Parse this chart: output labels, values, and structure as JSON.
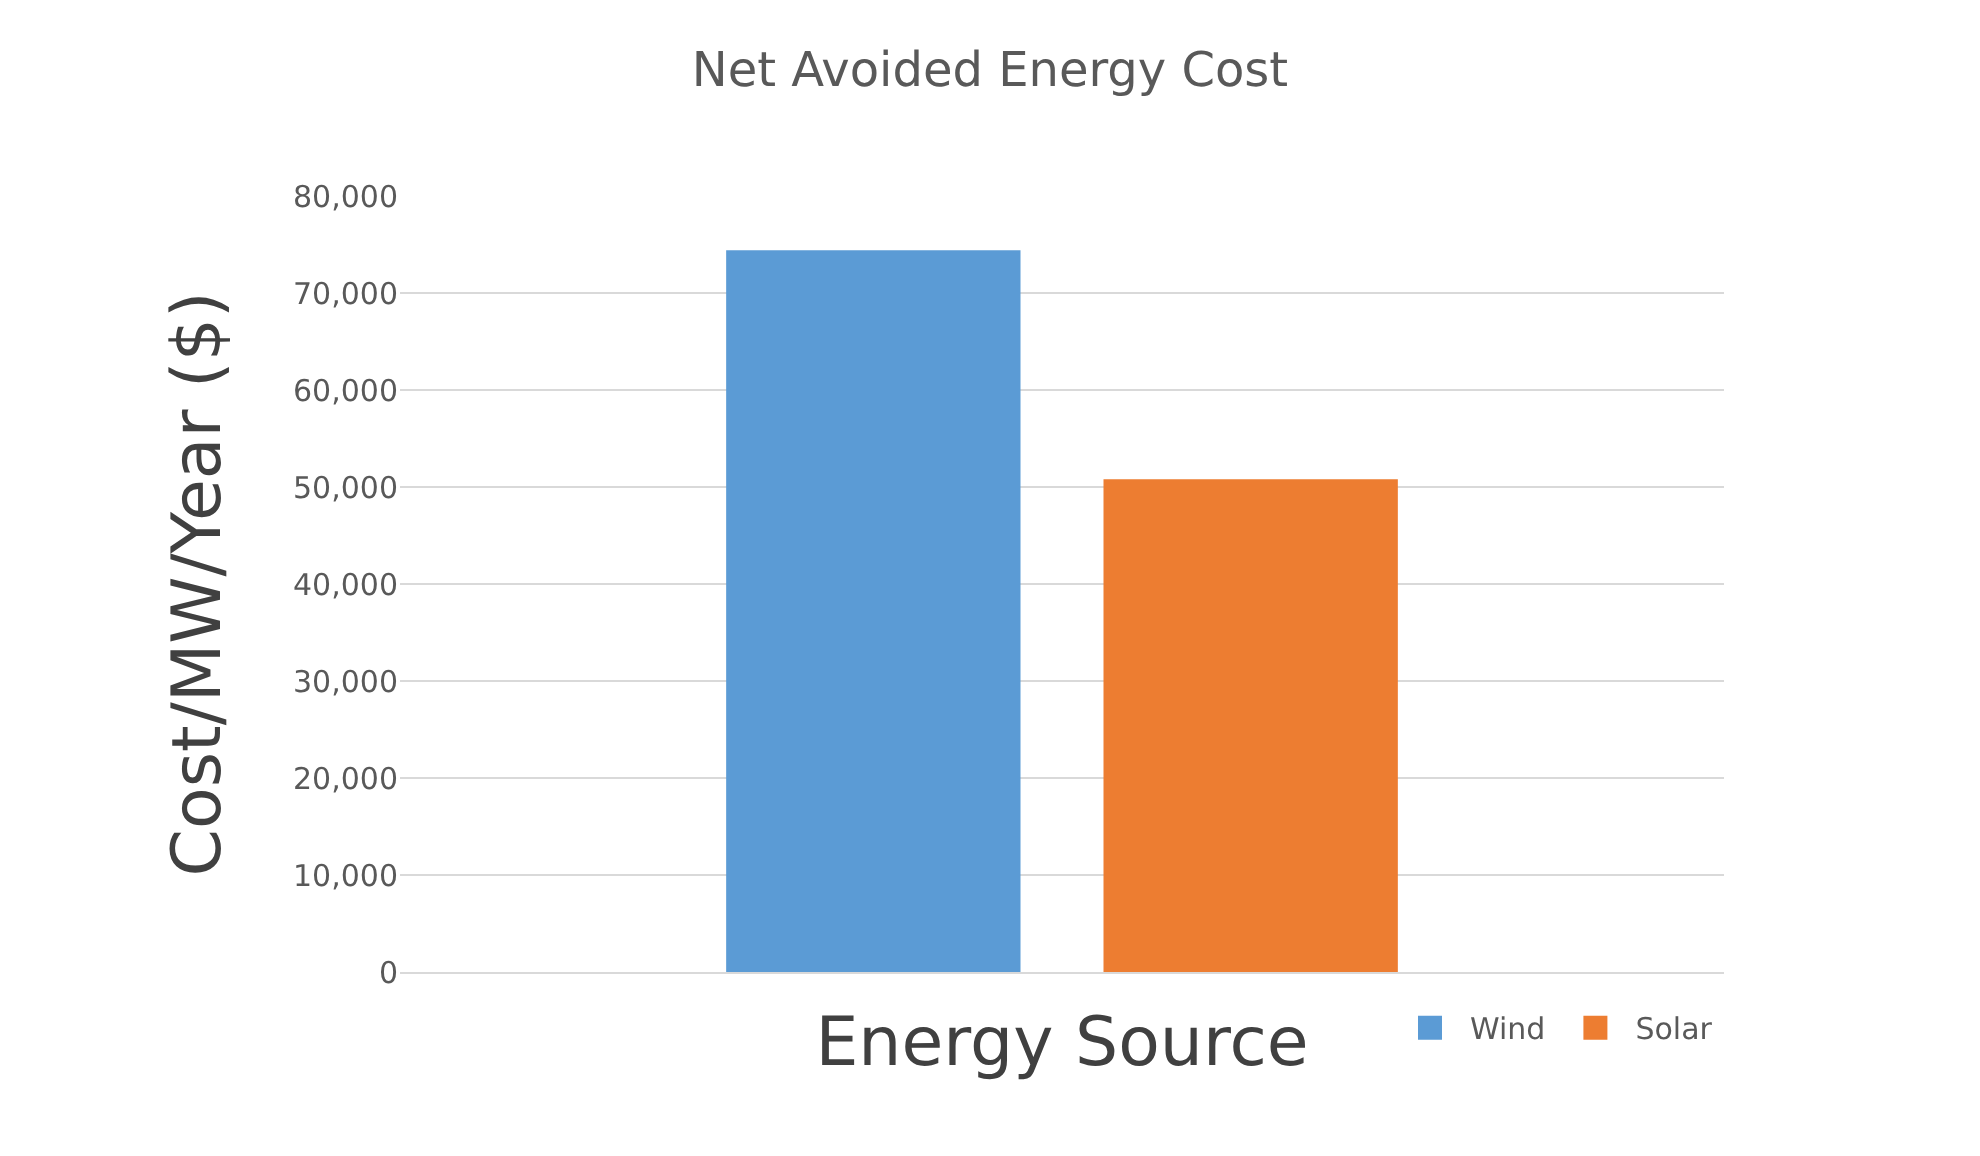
{
  "chart_data": {
    "type": "bar",
    "title": "Net Avoided Energy Cost",
    "xlabel": "Energy Source",
    "ylabel": "Cost/MW/Year ($)",
    "categories": [
      null
    ],
    "series": [
      {
        "name": "Wind",
        "color": "#5b9bd5",
        "values": [
          74400
        ]
      },
      {
        "name": "Solar",
        "color": "#ed7d31",
        "values": [
          50800
        ]
      }
    ],
    "ylim": [
      0,
      80000
    ],
    "yticks": [
      {
        "value": 0,
        "label": "0"
      },
      {
        "value": 10000,
        "label": "10,000"
      },
      {
        "value": 20000,
        "label": "20,000"
      },
      {
        "value": 30000,
        "label": "30,000"
      },
      {
        "value": 40000,
        "label": "40,000"
      },
      {
        "value": 50000,
        "label": "50,000"
      },
      {
        "value": 60000,
        "label": "60,000"
      },
      {
        "value": 70000,
        "label": "70,000"
      },
      {
        "value": 80000,
        "label": "80,000"
      }
    ],
    "grid": "y",
    "legend": "bottom right"
  }
}
